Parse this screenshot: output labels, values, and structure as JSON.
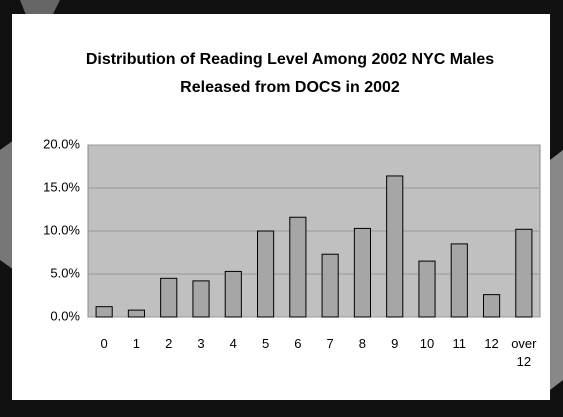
{
  "chart_data": {
    "type": "bar",
    "title": [
      "Distribution of Reading Level Among 2002 NYC Males",
      "Released from DOCS in 2002"
    ],
    "categories": [
      "0",
      "1",
      "2",
      "3",
      "4",
      "5",
      "6",
      "7",
      "8",
      "9",
      "10",
      "11",
      "12",
      "over 12"
    ],
    "values": [
      1.2,
      0.8,
      4.5,
      4.2,
      5.3,
      10.0,
      11.6,
      7.3,
      10.3,
      16.4,
      6.5,
      8.5,
      2.6,
      10.2
    ],
    "color": "#a6a6a6",
    "ylim": [
      0,
      20
    ],
    "yticks": [
      {
        "value": 0,
        "label": "0.0%"
      },
      {
        "value": 5,
        "label": "5.0%"
      },
      {
        "value": 10,
        "label": "10.0%"
      },
      {
        "value": 15,
        "label": "15.0%"
      },
      {
        "value": 20,
        "label": "20.0%"
      }
    ],
    "grid": true
  }
}
